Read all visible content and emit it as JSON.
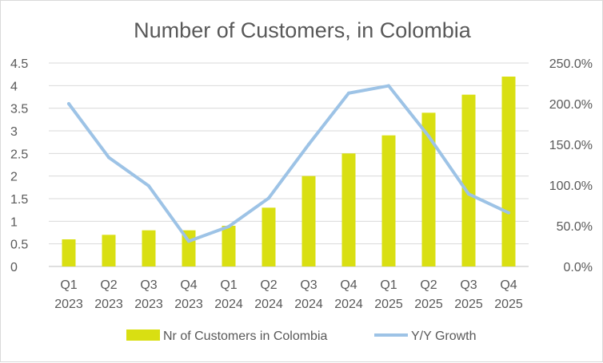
{
  "chart_data": {
    "type": "bar+line",
    "title": "Number of Customers, in Colombia",
    "categories": [
      [
        "Q1",
        "2023"
      ],
      [
        "Q2",
        "2023"
      ],
      [
        "Q3",
        "2023"
      ],
      [
        "Q4",
        "2023"
      ],
      [
        "Q1",
        "2024"
      ],
      [
        "Q2",
        "2024"
      ],
      [
        "Q3",
        "2024"
      ],
      [
        "Q4",
        "2024"
      ],
      [
        "Q1",
        "2025"
      ],
      [
        "Q2",
        "2025"
      ],
      [
        "Q3",
        "2025"
      ],
      [
        "Q4",
        "2025"
      ]
    ],
    "series": [
      {
        "name": "Nr of Customers in Colombia",
        "type": "bar",
        "axis": "left",
        "color": "#d9df12",
        "values": [
          0.6,
          0.7,
          0.8,
          0.8,
          0.9,
          1.3,
          2.0,
          2.5,
          2.9,
          3.4,
          3.8,
          4.2
        ]
      },
      {
        "name": "Y/Y Growth",
        "type": "line",
        "axis": "right",
        "color": "#9dc3e6",
        "values": [
          2.0,
          1.34,
          0.99,
          0.31,
          0.49,
          0.84,
          1.5,
          2.13,
          2.22,
          1.6,
          0.89,
          0.66
        ]
      }
    ],
    "y_left": {
      "min": 0,
      "max": 4.5,
      "ticks": [
        "0",
        "0.5",
        "1",
        "1.5",
        "2",
        "2.5",
        "3",
        "3.5",
        "4",
        "4.5"
      ]
    },
    "y_right": {
      "min": 0,
      "max": 2.5,
      "ticks": [
        "0.0%",
        "50.0%",
        "100.0%",
        "150.0%",
        "200.0%",
        "250.0%"
      ]
    },
    "grid": true,
    "legend": "bottom"
  }
}
